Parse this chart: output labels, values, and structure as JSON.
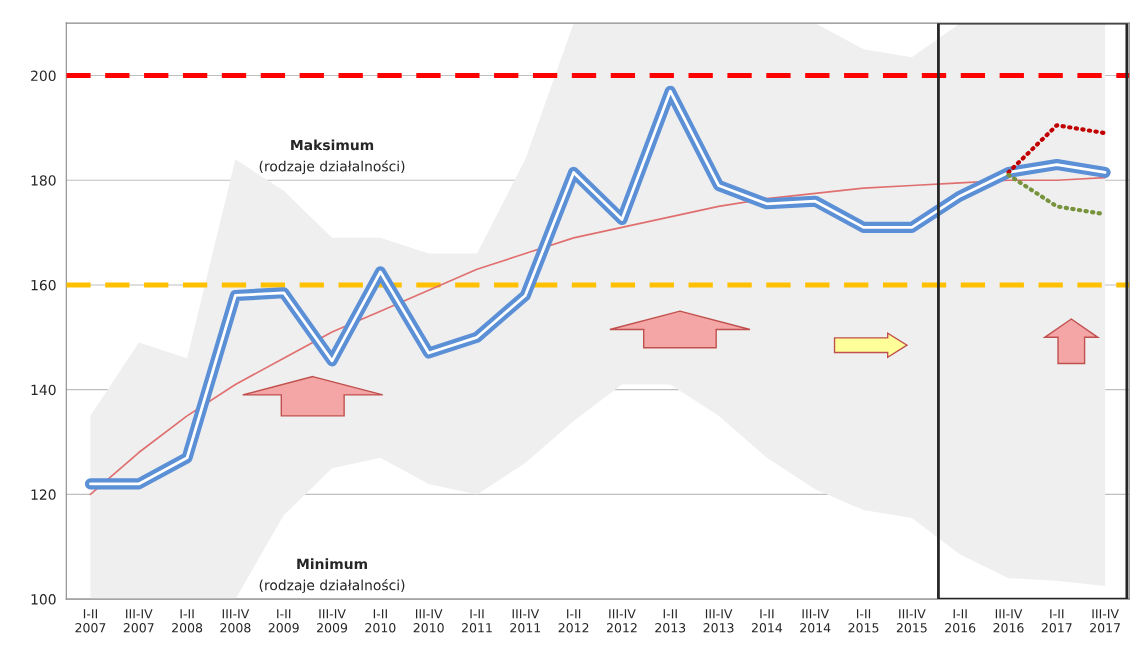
{
  "chart_data": {
    "type": "line",
    "categories": [
      "I-II\n2007",
      "III-IV\n2007",
      "I-II\n2008",
      "III-IV\n2008",
      "I-II\n2009",
      "III-IV\n2009",
      "I-II\n2010",
      "III-IV\n2010",
      "I-II\n2011",
      "III-IV\n2011",
      "I-II\n2012",
      "III-IV\n2012",
      "I-II\n2013",
      "III-IV\n2013",
      "I-II\n2014",
      "III-IV\n2014",
      "I-II\n2015",
      "III-IV\n2015",
      "I-II\n2016",
      "III-IV\n2016",
      "I-II\n2017",
      "III-IV\n2017"
    ],
    "series": [
      {
        "color": "#5b8fd6",
        "values": [
          122,
          122,
          127,
          158,
          158.5,
          145.5,
          162.5,
          147,
          150,
          158,
          181.5,
          172.5,
          197,
          179,
          175.5,
          176,
          171,
          171,
          177,
          181.5,
          183,
          181.5
        ],
        "upper": [
          135,
          149,
          146,
          184,
          178,
          169,
          169,
          166,
          166,
          184,
          210,
          210,
          210,
          210,
          210,
          210,
          205,
          203.5,
          210,
          210,
          210,
          210
        ],
        "lower": [
          100,
          100,
          100,
          100,
          116,
          125,
          127,
          122,
          120,
          126,
          134,
          141,
          141,
          135,
          127,
          121,
          117,
          115.5,
          108.5,
          104,
          103.5,
          102.5
        ]
      },
      {
        "color": "#e07070",
        "values": [
          120,
          128,
          135,
          141,
          146,
          151,
          155,
          159,
          163,
          166,
          169,
          171,
          173,
          175,
          176.5,
          177.5,
          178.5,
          179,
          179.5,
          180,
          180,
          180.5
        ]
      },
      {
        "color": "#c00000",
        "line_style": "dotted",
        "values": [
          null,
          null,
          null,
          null,
          null,
          null,
          null,
          null,
          null,
          null,
          null,
          null,
          null,
          null,
          null,
          null,
          null,
          null,
          null,
          181.5,
          190.5,
          189
        ]
      },
      {
        "color": "#77933c",
        "line_style": "dotted",
        "values": [
          null,
          null,
          null,
          null,
          null,
          null,
          null,
          null,
          null,
          null,
          null,
          null,
          null,
          null,
          null,
          null,
          null,
          null,
          null,
          181,
          175,
          173.5
        ]
      }
    ],
    "ylim": [
      100,
      210
    ],
    "yticks": [
      100,
      120,
      140,
      160,
      180,
      200
    ],
    "grid": "y",
    "ref_lines": [
      {
        "axis": "y",
        "value": 200,
        "color": "#ff0000",
        "line_style": "dashed"
      },
      {
        "axis": "y",
        "value": 160,
        "color": "#ffc000",
        "line_style": "dashed"
      }
    ],
    "annotations": [
      "Maksimum",
      "(rodzaje działalności)",
      "Minimum",
      "(rodzaje działalności)"
    ]
  }
}
